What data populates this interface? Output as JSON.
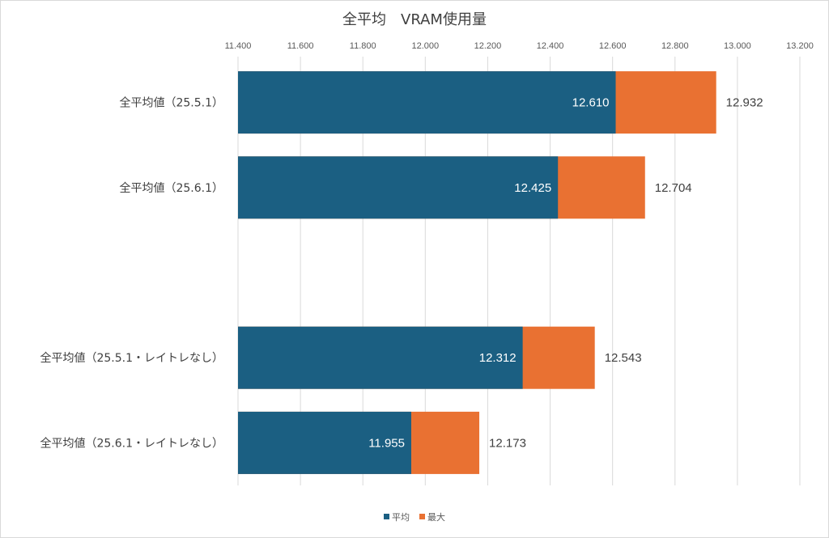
{
  "chart_data": {
    "type": "bar",
    "orientation": "horizontal",
    "stacking": "overlay",
    "title": "全平均　VRAM使用量",
    "categories": [
      "全平均値（25.5.1）",
      "全平均値（25.6.1）",
      "",
      "全平均値（25.5.1・レイトレなし）",
      "全平均値（25.6.1・レイトレなし）"
    ],
    "series": [
      {
        "name": "平均",
        "color": "#1b5f82",
        "values": [
          12.61,
          12.425,
          null,
          12.312,
          11.955
        ],
        "labels": [
          "12.610",
          "12.425",
          "",
          "12.312",
          "11.955"
        ],
        "label_position": "inside-end"
      },
      {
        "name": "最大",
        "color": "#e97132",
        "values": [
          12.932,
          12.704,
          null,
          12.543,
          12.173
        ],
        "labels": [
          "12.932",
          "12.704",
          "",
          "12.543",
          "12.173"
        ],
        "label_position": "outside-end"
      }
    ],
    "xlim": [
      11.4,
      13.2
    ],
    "xticks": [
      "11.400",
      "11.600",
      "11.800",
      "12.000",
      "12.200",
      "12.400",
      "12.600",
      "12.800",
      "13.000",
      "13.200"
    ],
    "tick_step": 0.2,
    "xaxis_position": "top",
    "grid": true,
    "legend": {
      "position": "bottom",
      "entries": [
        "平均",
        "最大"
      ]
    }
  }
}
